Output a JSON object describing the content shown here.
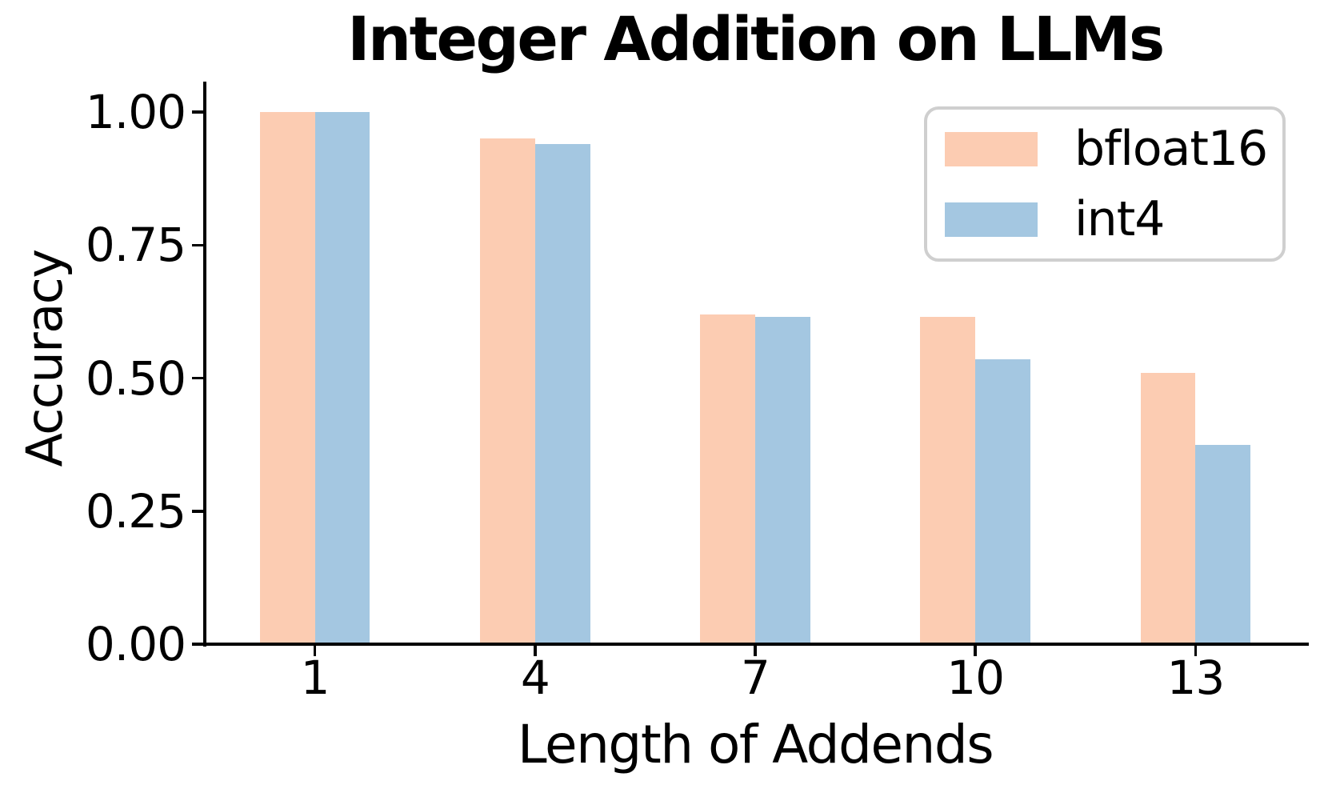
{
  "chart_data": {
    "type": "bar",
    "title": "Integer Addition on LLMs",
    "xlabel": "Length of Addends",
    "ylabel": "Accuracy",
    "categories": [
      "1",
      "4",
      "7",
      "10",
      "13"
    ],
    "series": [
      {
        "name": "bfloat16",
        "color": "#FCCCB2",
        "values": [
          1.0,
          0.95,
          0.62,
          0.615,
          0.51
        ]
      },
      {
        "name": "int4",
        "color": "#A4C7E1",
        "values": [
          1.0,
          0.94,
          0.615,
          0.535,
          0.375
        ]
      }
    ],
    "ylim": [
      0,
      1.05
    ],
    "yticks": [
      "0.00",
      "0.25",
      "0.50",
      "0.75",
      "1.00"
    ],
    "ytick_values": [
      0,
      0.25,
      0.5,
      0.75,
      1.0
    ],
    "legend": {
      "position": "upper right",
      "border_color": "#CFCFCF"
    },
    "axis_color": "#000000",
    "background": "#FFFFFF",
    "grid": false
  }
}
